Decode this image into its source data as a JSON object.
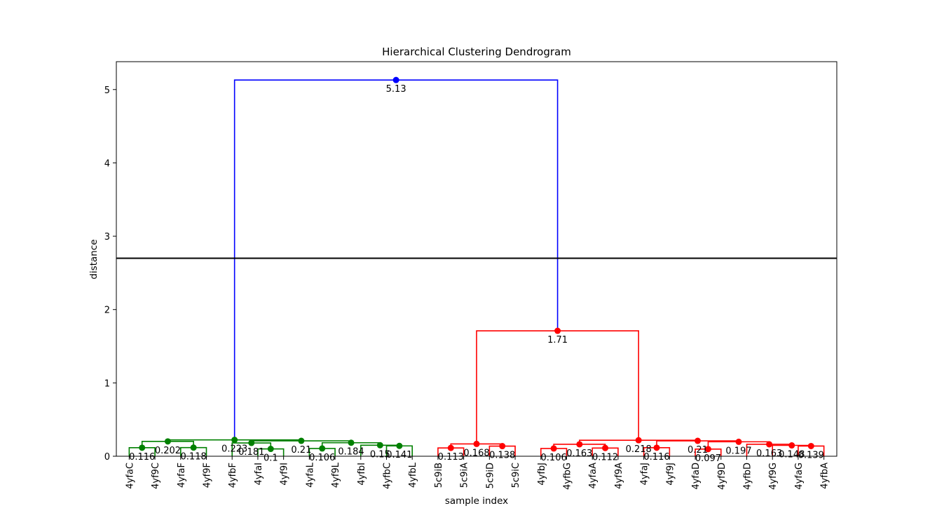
{
  "chart_data": {
    "type": "dendrogram",
    "title": "Hierarchical Clustering Dendrogram",
    "xlabel": "sample index",
    "ylabel": "distance",
    "ylim": [
      0,
      5.38
    ],
    "yticks": [
      "0",
      "1",
      "2",
      "3",
      "4",
      "5"
    ],
    "cut_height": 2.7,
    "leaves": [
      "4yfaC",
      "4yf9C",
      "4yfaF",
      "4yf9F",
      "4yfbF",
      "4yfaI",
      "4yf9I",
      "4yfaL",
      "4yf9L",
      "4yfbI",
      "4yfbC",
      "4yfbL",
      "5c9iB",
      "5c9iA",
      "5c9iD",
      "5c9iC",
      "4yfbJ",
      "4yfbG",
      "4yfaA",
      "4yf9A",
      "4yfaJ",
      "4yf9J",
      "4yfaD",
      "4yf9D",
      "4yfbD",
      "4yf9G",
      "4yfaG",
      "4yfbA"
    ],
    "merges": [
      {
        "a": 0,
        "b": 1,
        "height": 0.116,
        "label": "0.116",
        "color": "#008000"
      },
      {
        "a": 2,
        "b": 3,
        "height": 0.118,
        "label": "0.118",
        "color": "#008000"
      },
      {
        "a": 28,
        "b": 29,
        "height": 0.202,
        "label": "0.202",
        "color": "#008000"
      },
      {
        "a": 5,
        "b": 6,
        "height": 0.1,
        "label": "0.1",
        "color": "#008000"
      },
      {
        "a": 4,
        "b": 31,
        "height": 0.181,
        "label": "0.181",
        "color": "#008000"
      },
      {
        "a": 7,
        "b": 8,
        "height": 0.106,
        "label": "0.106",
        "color": "#008000"
      },
      {
        "a": 10,
        "b": 11,
        "height": 0.141,
        "label": "0.141",
        "color": "#008000"
      },
      {
        "a": 9,
        "b": 34,
        "height": 0.15,
        "label": "0.15",
        "color": "#008000"
      },
      {
        "a": 33,
        "b": 35,
        "height": 0.184,
        "label": "0.184",
        "color": "#008000"
      },
      {
        "a": 32,
        "b": 36,
        "height": 0.21,
        "label": "0.21",
        "color": "#008000"
      },
      {
        "a": 30,
        "b": 37,
        "height": 0.223,
        "label": "0.223",
        "color": "#008000"
      },
      {
        "a": 12,
        "b": 13,
        "height": 0.113,
        "label": "0.113",
        "color": "#ff0000"
      },
      {
        "a": 14,
        "b": 15,
        "height": 0.138,
        "label": "0.138",
        "color": "#ff0000"
      },
      {
        "a": 39,
        "b": 40,
        "height": 0.168,
        "label": "0.168",
        "color": "#ff0000"
      },
      {
        "a": 16,
        "b": 17,
        "height": 0.106,
        "label": "0.106",
        "color": "#ff0000"
      },
      {
        "a": 18,
        "b": 19,
        "height": 0.112,
        "label": "0.112",
        "color": "#ff0000"
      },
      {
        "a": 42,
        "b": 43,
        "height": 0.163,
        "label": "0.163",
        "color": "#ff0000"
      },
      {
        "a": 20,
        "b": 21,
        "height": 0.116,
        "label": "0.116",
        "color": "#ff0000"
      },
      {
        "a": 22,
        "b": 23,
        "height": 0.097,
        "label": "0.097",
        "color": "#ff0000"
      },
      {
        "a": 26,
        "b": 27,
        "height": 0.139,
        "label": "0.139",
        "color": "#ff0000"
      },
      {
        "a": 25,
        "b": 47,
        "height": 0.148,
        "label": "0.148",
        "color": "#ff0000"
      },
      {
        "a": 24,
        "b": 48,
        "height": 0.163,
        "label": "0.163",
        "color": "#ff0000"
      },
      {
        "a": 46,
        "b": 49,
        "height": 0.197,
        "label": "0.197",
        "color": "#ff0000"
      },
      {
        "a": 45,
        "b": 50,
        "height": 0.21,
        "label": "0.21",
        "color": "#ff0000"
      },
      {
        "a": 44,
        "b": 51,
        "height": 0.218,
        "label": "0.218",
        "color": "#ff0000"
      },
      {
        "a": 41,
        "b": 52,
        "height": 1.71,
        "label": "1.71",
        "color": "#ff0000"
      },
      {
        "a": 38,
        "b": 53,
        "height": 5.13,
        "label": "5.13",
        "color": "#0000ff"
      }
    ]
  }
}
